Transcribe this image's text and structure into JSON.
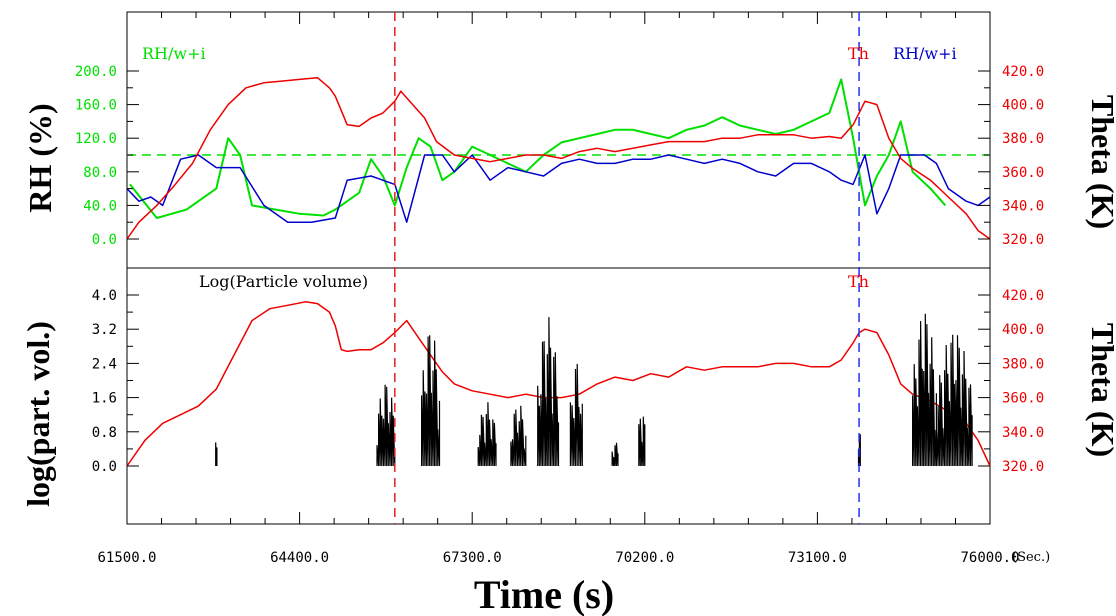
{
  "colors": {
    "rh_total": "#00e000",
    "rh_water_ice": "#0000cc",
    "theta": "#ee0000",
    "particle": "#000000",
    "reference": "#00e000",
    "axis": "#000000"
  },
  "chart_data": [
    {
      "type": "line",
      "panel": "upper",
      "xlim": [
        61500,
        76000
      ],
      "ylabel": "RH (%)",
      "ylabel_right": "Theta (K)",
      "ylim": [
        0,
        200
      ],
      "ylim_right": [
        320,
        420
      ],
      "y_ticks": [
        "0.0",
        "40.0",
        "80.0",
        "120.0",
        "160.0",
        "200.0"
      ],
      "y_ticks_right": [
        "320.0",
        "340.0",
        "360.0",
        "380.0",
        "400.0",
        "420.0"
      ],
      "reference_line_y": 100,
      "vertical_markers_x": [
        66000,
        73800
      ],
      "labels": {
        "left": "RH/w+i",
        "theta": "Th",
        "right": "RH/w+i"
      },
      "series": [
        {
          "role": "rh-total",
          "color": "#00e000",
          "axis": "left",
          "x": [
            61550,
            62000,
            62500,
            63000,
            63200,
            63400,
            63600,
            64000,
            64400,
            64800,
            65000,
            65200,
            65400,
            65600,
            65800,
            66000,
            66200,
            66400,
            66600,
            66800,
            67000,
            67300,
            67600,
            67900,
            68200,
            68500,
            68800,
            69100,
            69400,
            69700,
            70000,
            70300,
            70600,
            70900,
            71200,
            71500,
            71800,
            72100,
            72400,
            72700,
            73000,
            73300,
            73500,
            73700,
            73900,
            74100,
            74300,
            74500,
            74700,
            75000,
            75250
          ],
          "y": [
            65,
            25,
            35,
            60,
            120,
            100,
            40,
            35,
            30,
            28,
            35,
            45,
            55,
            95,
            75,
            40,
            85,
            120,
            110,
            70,
            80,
            110,
            100,
            90,
            80,
            100,
            115,
            120,
            125,
            130,
            130,
            125,
            120,
            130,
            135,
            145,
            135,
            130,
            125,
            130,
            140,
            150,
            190,
            120,
            40,
            75,
            100,
            140,
            80,
            60,
            40
          ]
        },
        {
          "role": "rh-water-ice",
          "color": "#0000cc",
          "axis": "left",
          "x": [
            61500,
            61700,
            61900,
            62100,
            62400,
            62700,
            63000,
            63200,
            63400,
            63800,
            64200,
            64600,
            65000,
            65200,
            65600,
            66000,
            66200,
            66500,
            66800,
            67000,
            67300,
            67600,
            67900,
            68200,
            68500,
            68800,
            69100,
            69400,
            69700,
            70000,
            70300,
            70600,
            70900,
            71200,
            71500,
            71800,
            72100,
            72400,
            72700,
            73000,
            73300,
            73500,
            73700,
            73900,
            74100,
            74300,
            74500,
            74700,
            74900,
            75100,
            75300,
            75600,
            75800,
            76000
          ],
          "y": [
            60,
            45,
            50,
            40,
            95,
            100,
            85,
            85,
            85,
            40,
            20,
            20,
            25,
            70,
            75,
            65,
            20,
            100,
            100,
            80,
            100,
            70,
            85,
            80,
            75,
            90,
            95,
            90,
            90,
            95,
            95,
            100,
            95,
            90,
            95,
            90,
            80,
            75,
            90,
            90,
            80,
            70,
            65,
            100,
            30,
            60,
            100,
            100,
            100,
            90,
            60,
            45,
            40,
            50
          ]
        },
        {
          "role": "theta",
          "color": "#ee0000",
          "axis": "right",
          "x": [
            61500,
            61700,
            62000,
            62300,
            62600,
            62900,
            63200,
            63500,
            63800,
            64100,
            64400,
            64700,
            64900,
            65000,
            65200,
            65400,
            65600,
            65800,
            66000,
            66100,
            66300,
            66500,
            66700,
            67000,
            67300,
            67600,
            67900,
            68200,
            68500,
            68800,
            69100,
            69400,
            69700,
            70000,
            70300,
            70600,
            70900,
            71200,
            71500,
            71800,
            72100,
            72400,
            72700,
            73000,
            73300,
            73500,
            73700,
            73800,
            73900,
            74100,
            74300,
            74500,
            74700,
            75000,
            75300,
            75600,
            75800,
            76000
          ],
          "y": [
            320,
            330,
            340,
            352,
            365,
            385,
            400,
            410,
            413,
            414,
            415,
            416,
            410,
            405,
            388,
            387,
            392,
            395,
            402,
            408,
            400,
            392,
            378,
            370,
            368,
            366,
            368,
            370,
            370,
            368,
            372,
            374,
            372,
            374,
            376,
            378,
            378,
            378,
            380,
            380,
            382,
            382,
            382,
            380,
            381,
            380,
            388,
            395,
            402,
            400,
            380,
            368,
            362,
            355,
            345,
            335,
            325,
            320
          ]
        }
      ]
    },
    {
      "type": "line",
      "panel": "lower",
      "xlim": [
        61500,
        76000
      ],
      "ylabel": "log(part. vol.)",
      "ylabel_right": "Theta (K)",
      "xlabel": "Time (s)",
      "x_unit": "(Sec.)",
      "ylim": [
        0,
        4
      ],
      "ylim_right": [
        320,
        420
      ],
      "y_ticks": [
        "0.0",
        "0.8",
        "1.6",
        "2.4",
        "3.2",
        "4.0"
      ],
      "y_ticks_right": [
        "320.0",
        "340.0",
        "360.0",
        "380.0",
        "400.0",
        "420.0"
      ],
      "x_ticks": [
        "61500.0",
        "64400.0",
        "67300.0",
        "70200.0",
        "73100.0",
        "76000.0"
      ],
      "vertical_markers_x": [
        66000,
        73800
      ],
      "labels": {
        "left": "Log(Particle volume)",
        "theta": "Th"
      },
      "series": [
        {
          "role": "theta",
          "color": "#ee0000",
          "axis": "right",
          "x": [
            61500,
            61800,
            62100,
            62400,
            62700,
            63000,
            63300,
            63600,
            63900,
            64200,
            64500,
            64700,
            64900,
            65000,
            65100,
            65200,
            65400,
            65600,
            65800,
            66000,
            66200,
            66400,
            66600,
            66800,
            67000,
            67300,
            67600,
            67900,
            68200,
            68500,
            68800,
            69100,
            69400,
            69700,
            70000,
            70300,
            70600,
            70900,
            71200,
            71500,
            71800,
            72100,
            72400,
            72700,
            73000,
            73300,
            73500,
            73700,
            73800,
            73900,
            74100,
            74300,
            74500,
            74700,
            75000,
            75300,
            75600,
            75800,
            76000
          ],
          "y": [
            320,
            335,
            345,
            350,
            355,
            365,
            385,
            405,
            412,
            414,
            416,
            415,
            410,
            402,
            388,
            387,
            388,
            388,
            392,
            398,
            405,
            395,
            385,
            375,
            368,
            364,
            362,
            360,
            362,
            360,
            360,
            362,
            368,
            372,
            370,
            374,
            372,
            378,
            376,
            378,
            378,
            378,
            380,
            380,
            378,
            378,
            382,
            392,
            398,
            400,
            398,
            385,
            368,
            362,
            358,
            352,
            345,
            335,
            320
          ]
        },
        {
          "role": "particle-volume",
          "color": "#000000",
          "axis": "left",
          "bursts": [
            {
              "x": [
                62990,
                63010
              ],
              "y": [
                0.0,
                0.8
              ]
            },
            {
              "x": [
                65700,
                66000
              ],
              "y": [
                0.0,
                2.0
              ]
            },
            {
              "x": [
                66450,
                66750
              ],
              "y": [
                0.0,
                3.3
              ]
            },
            {
              "x": [
                67400,
                67700
              ],
              "y": [
                0.0,
                1.5
              ]
            },
            {
              "x": [
                67950,
                68200
              ],
              "y": [
                0.0,
                1.5
              ]
            },
            {
              "x": [
                68400,
                68750
              ],
              "y": [
                0.0,
                3.5
              ]
            },
            {
              "x": [
                68950,
                69150
              ],
              "y": [
                0.0,
                2.5
              ]
            },
            {
              "x": [
                69650,
                69750
              ],
              "y": [
                0.0,
                0.6
              ]
            },
            {
              "x": [
                70100,
                70200
              ],
              "y": [
                0.0,
                1.5
              ]
            },
            {
              "x": [
                73790,
                73820
              ],
              "y": [
                0.0,
                1.0
              ]
            },
            {
              "x": [
                74700,
                75100
              ],
              "y": [
                0.0,
                3.7
              ]
            },
            {
              "x": [
                75100,
                75700
              ],
              "y": [
                0.0,
                3.2
              ]
            }
          ]
        }
      ]
    }
  ]
}
